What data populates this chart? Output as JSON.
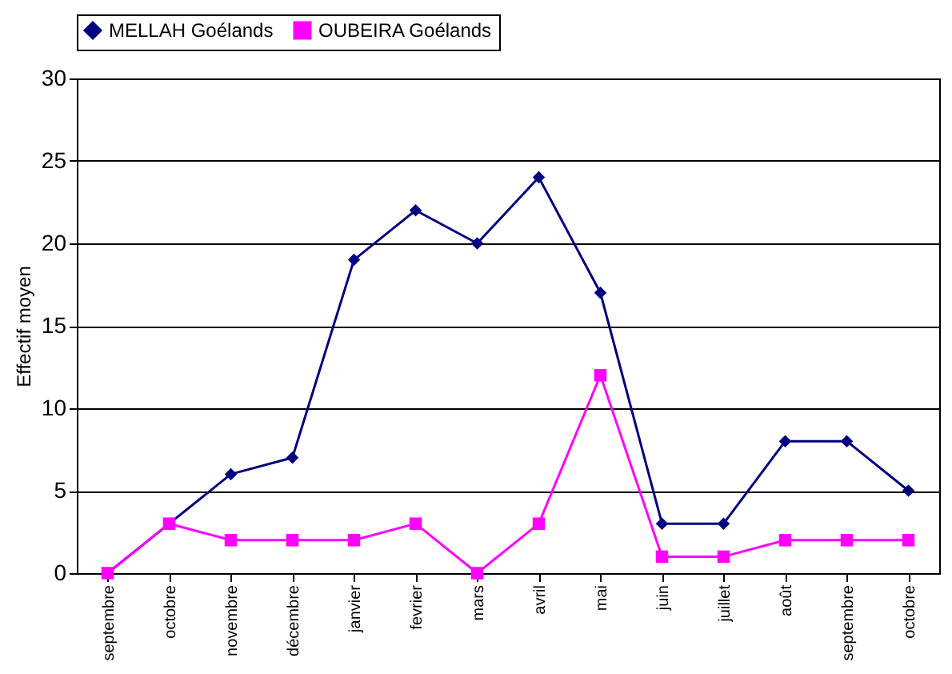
{
  "chart_data": {
    "type": "line",
    "ylabel": "Effectif moyen",
    "categories": [
      "septembre",
      "octobre",
      "novembre",
      "décembre",
      "janvier",
      "fevrier",
      "mars",
      "avril",
      "mai",
      "juin",
      "juillet",
      "août",
      "septembre",
      "octobre"
    ],
    "series": [
      {
        "name": "MELLAH Goélands",
        "color": "#000080",
        "marker": "diamond",
        "values": [
          0,
          3,
          6,
          7,
          19,
          22,
          20,
          24,
          17,
          3,
          3,
          8,
          8,
          5
        ]
      },
      {
        "name": "OUBEIRA Goélands",
        "color": "#ff00ff",
        "marker": "square",
        "values": [
          0,
          3,
          2,
          2,
          2,
          3,
          0,
          3,
          12,
          1,
          1,
          2,
          2,
          2
        ]
      }
    ],
    "ylim": [
      0,
      30
    ],
    "yticks": [
      0,
      5,
      10,
      15,
      20,
      25,
      30
    ],
    "grid": "y",
    "legend": "top",
    "line_style": "solid"
  }
}
